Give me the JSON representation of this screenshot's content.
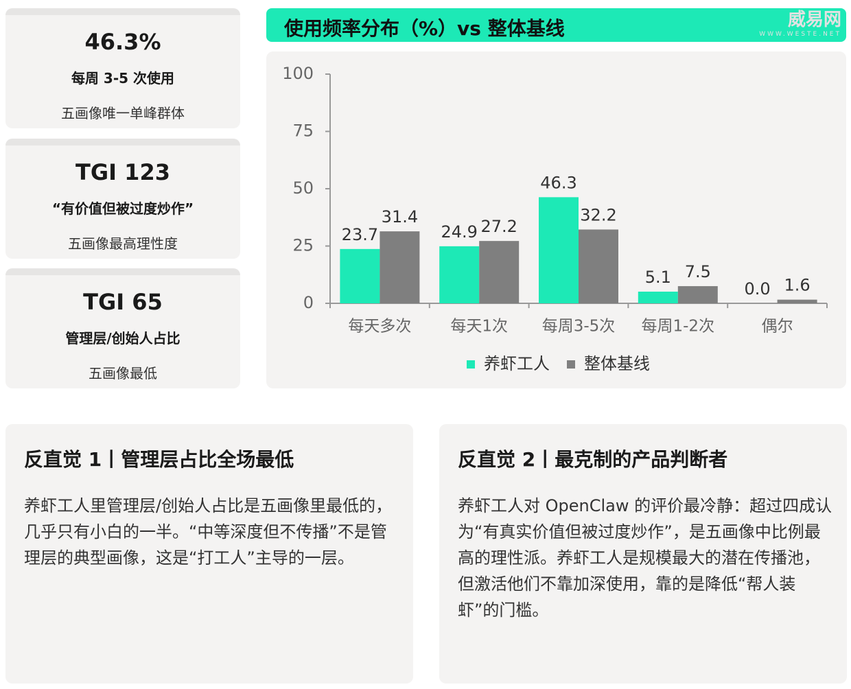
{
  "watermark": {
    "brand": "威易网",
    "url": "WWW.WESTE.NET"
  },
  "cards": [
    {
      "value": "46.3%",
      "label": "每周 3-5 次使用",
      "note": "五画像唯一单峰群体"
    },
    {
      "value": "TGI 123",
      "label": "“有价值但被过度炒作”",
      "note": "五画像最高理性度"
    },
    {
      "value": "TGI 65",
      "label": "管理层/创始人占比",
      "note": "五画像最低"
    }
  ],
  "chart_data": {
    "type": "bar",
    "title": "使用频率分布（%）vs 整体基线",
    "categories": [
      "每天多次",
      "每天1次",
      "每周3-5次",
      "每周1-2次",
      "偶尔"
    ],
    "series": [
      {
        "name": "养虾工人",
        "color": "#1de9b6",
        "values": [
          23.7,
          24.9,
          46.3,
          5.1,
          0
        ],
        "value_labels": [
          "23.7",
          "24.9",
          "46.3",
          "5.1",
          "0.0"
        ]
      },
      {
        "name": "整体基线",
        "color": "#7f7f7f",
        "values": [
          31.4,
          27.2,
          32.2,
          7.5,
          1.6
        ]
      }
    ],
    "ylim": [
      0,
      100
    ],
    "yticks": [
      0,
      25,
      50,
      75,
      100
    ],
    "legend": "bottom"
  },
  "insights": [
    {
      "title": "反直觉 1丨管理层占比全场最低",
      "body": "养虾工人里管理层/创始人占比是五画像里最低的，几乎只有小白的一半。“中等深度但不传播”不是管理层的典型画像，这是“打工人”主导的一层。"
    },
    {
      "title": "反直觉 2丨最克制的产品判断者",
      "body": "养虾工人对 OpenClaw 的评价最冷静：超过四成认为“有真实价值但被过度炒作”，是五画像中比例最高的理性派。养虾工人是规模最大的潜在传播池，但激活他们不靠加深使用，靠的是降低“帮人装虾”的门槛。"
    }
  ]
}
